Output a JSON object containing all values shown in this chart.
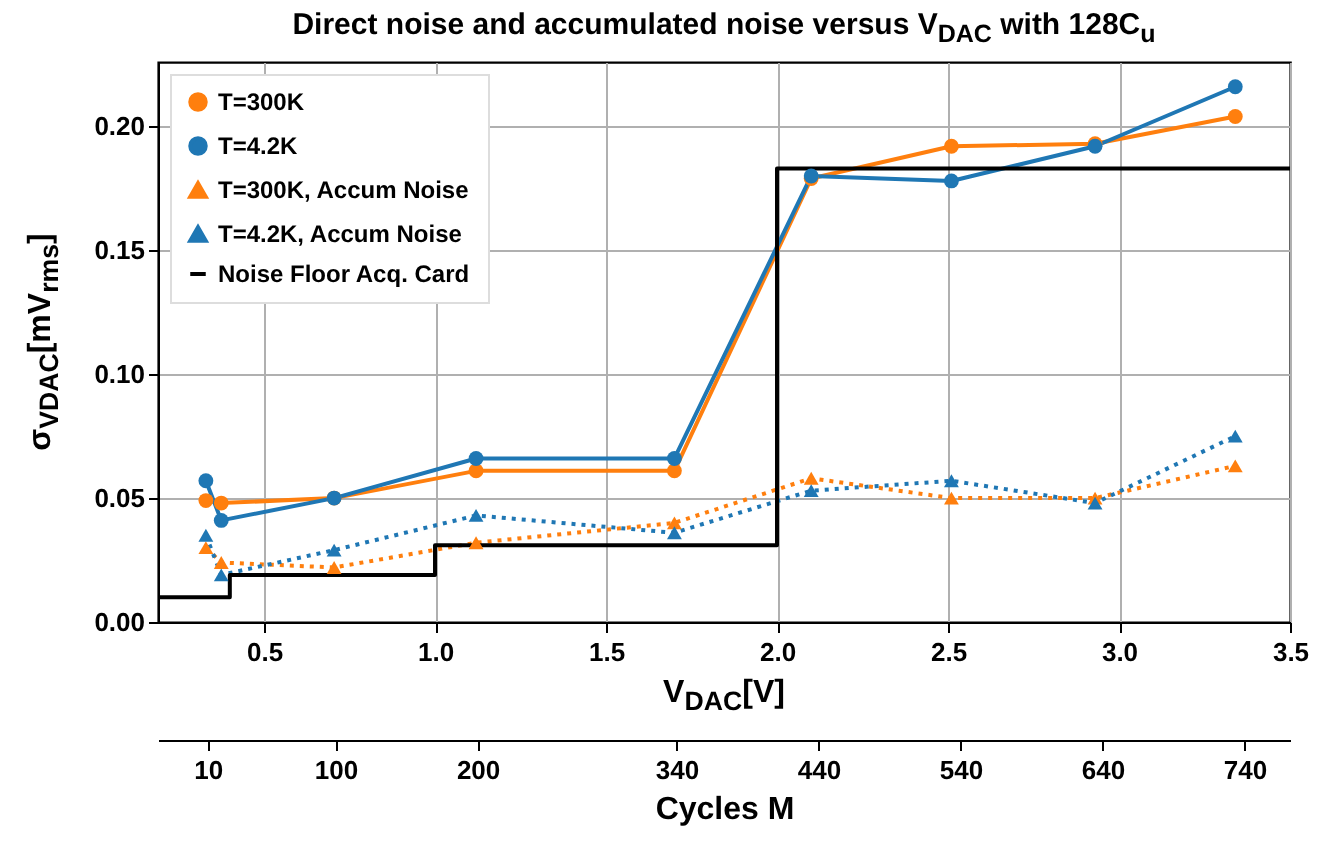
{
  "chart_data": {
    "type": "line",
    "title": "Direct noise and accumulated noise versus V$_{DAC}$ with 128C$_{u}$",
    "xlabel": "V$_{DAC}$[V]",
    "ylabel": "σ$_{VDAC}$[mV$_{rms}$]",
    "x2label": "Cycles M",
    "xlim": [
      0.19,
      3.5
    ],
    "xticks": [
      0.5,
      {
        "value": 1,
        "label": "1.0"
      },
      1.5,
      {
        "value": 2,
        "label": "2.0"
      },
      2.5,
      {
        "value": 3,
        "label": "3.0"
      },
      3.5
    ],
    "x2lim": [
      -25,
      772
    ],
    "x2ticks": [
      10,
      100,
      200,
      340,
      440,
      540,
      640,
      740
    ],
    "ylim": [
      0,
      0.226
    ],
    "yticks": [
      {
        "value": 0,
        "label": "0.00"
      },
      0.05,
      {
        "value": 0.1,
        "label": "0.10"
      },
      0.15,
      {
        "value": 0.2,
        "label": "0.20"
      }
    ],
    "grid": true,
    "legend": "top left",
    "series": [
      {
        "name": "T=300K",
        "color": "#ff7f0e",
        "marker": "circle",
        "line_style": "solid",
        "x": [
          0.33,
          0.375,
          0.705,
          1.12,
          1.7,
          2.1,
          2.51,
          2.93,
          3.34
        ],
        "values": [
          0.049,
          0.048,
          0.05,
          0.061,
          0.061,
          0.179,
          0.192,
          0.193,
          0.204
        ]
      },
      {
        "name": "T=4.2K",
        "color": "#1f77b4",
        "marker": "circle",
        "line_style": "solid",
        "x": [
          0.33,
          0.375,
          0.705,
          1.12,
          1.7,
          2.1,
          2.51,
          2.93,
          3.34
        ],
        "values": [
          0.057,
          0.041,
          0.05,
          0.066,
          0.066,
          0.18,
          0.178,
          0.192,
          0.216
        ]
      },
      {
        "name": "T=300K, Accum Noise",
        "color": "#ff7f0e",
        "marker": "triangle",
        "line_style": "dotted",
        "x": [
          0.33,
          0.375,
          0.705,
          1.12,
          1.7,
          2.1,
          2.51,
          2.93,
          3.34
        ],
        "values": [
          0.03,
          0.024,
          0.022,
          0.032,
          0.04,
          0.058,
          0.05,
          0.05,
          0.063
        ]
      },
      {
        "name": "T=4.2K, Accum Noise",
        "color": "#1f77b4",
        "marker": "triangle",
        "line_style": "dotted",
        "x": [
          0.33,
          0.375,
          0.705,
          1.12,
          1.7,
          2.1,
          2.51,
          2.93,
          3.34
        ],
        "values": [
          0.035,
          0.019,
          0.029,
          0.043,
          0.036,
          0.053,
          0.057,
          0.048,
          0.075
        ]
      },
      {
        "name": "Noise Floor Acq. Card",
        "color": "#000000",
        "type": "step",
        "marker": "none",
        "line_style": "solid",
        "x": [
          0.19,
          0.4,
          1.0,
          2.0,
          3.5
        ],
        "values": [
          0.01,
          0.019,
          0.031,
          0.183,
          0.183
        ]
      }
    ]
  }
}
